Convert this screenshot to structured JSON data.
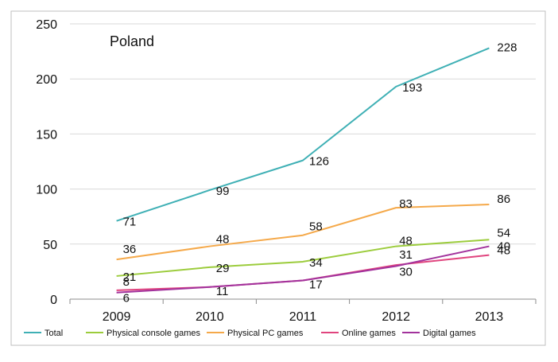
{
  "chart_data": {
    "type": "line",
    "title": "",
    "annotation": "Poland",
    "xlabel": "",
    "ylabel": "",
    "x": [
      "2009",
      "2010",
      "2011",
      "2012",
      "2013"
    ],
    "ylim": [
      0,
      250
    ],
    "yticks": [
      0,
      50,
      100,
      150,
      200,
      250
    ],
    "grid": true,
    "legend_position": "bottom",
    "series": [
      {
        "name": "Total",
        "color": "#3fb0b5",
        "values": [
          71,
          99,
          126,
          193,
          228
        ],
        "labels": [
          "71",
          "99",
          "126",
          "193",
          "228"
        ]
      },
      {
        "name": "Physical console games",
        "color": "#9ccc3c",
        "values": [
          21,
          29,
          34,
          48,
          54
        ],
        "labels": [
          "21",
          "29",
          "34",
          "48",
          "54"
        ]
      },
      {
        "name": "Physical PC games",
        "color": "#f5a94a",
        "values": [
          36,
          48,
          58,
          83,
          86
        ],
        "labels": [
          "36",
          "48",
          "58",
          "83",
          "86"
        ]
      },
      {
        "name": "Online games",
        "color": "#e0447e",
        "values": [
          8,
          11,
          17,
          31,
          40
        ],
        "labels": [
          "8",
          "11",
          "17",
          "31",
          "40"
        ]
      },
      {
        "name": "Digital games",
        "color": "#a2329c",
        "values": [
          6,
          11,
          17,
          30,
          48
        ],
        "labels": [
          "6",
          "",
          "",
          "30",
          "48"
        ]
      }
    ]
  }
}
